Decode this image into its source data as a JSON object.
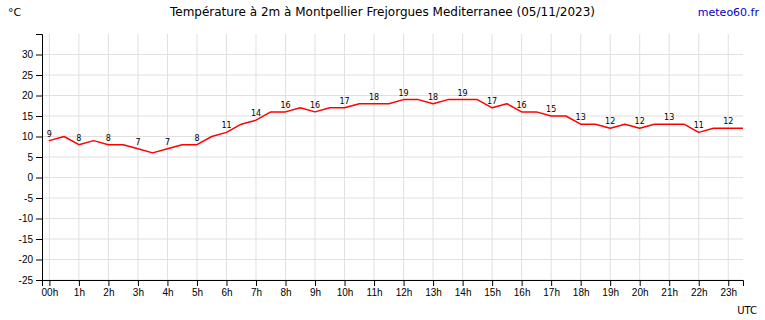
{
  "chart_data": {
    "type": "line",
    "title": "Température à 2m à Montpellier Frejorgues Mediterranee (05/11/2023)",
    "ylabel": "°C",
    "xlabel": "UTC",
    "annotations": [
      {
        "text": "meteo60.fr",
        "color": "#0000cc"
      }
    ],
    "x": [
      0,
      1,
      2,
      3,
      4,
      5,
      6,
      7,
      8,
      9,
      10,
      11,
      12,
      13,
      14,
      15,
      16,
      17,
      18,
      19,
      20,
      21,
      22,
      23,
      24,
      25,
      26,
      27,
      28,
      29,
      30,
      31,
      32,
      33,
      34,
      35,
      36,
      37,
      38,
      39,
      40,
      41,
      42,
      43,
      44,
      45,
      46,
      47
    ],
    "values": [
      9,
      10,
      8,
      9,
      8,
      8,
      7,
      6,
      7,
      8,
      8,
      10,
      11,
      13,
      14,
      16,
      16,
      17,
      16,
      17,
      17,
      18,
      18,
      18,
      19,
      19,
      18,
      19,
      19,
      19,
      17,
      18,
      16,
      16,
      15,
      15,
      13,
      13,
      12,
      13,
      12,
      13,
      13,
      13,
      11,
      12,
      12,
      12
    ],
    "value_labels": [
      "9",
      null,
      "8",
      null,
      "8",
      null,
      "7",
      null,
      "7",
      null,
      "8",
      null,
      "11",
      null,
      "14",
      null,
      "16",
      null,
      "16",
      null,
      "17",
      null,
      "18",
      null,
      "19",
      null,
      "18",
      null,
      "19",
      null,
      "17",
      null,
      "16",
      null,
      "15",
      null,
      "13",
      null,
      "12",
      null,
      "12",
      null,
      "13",
      null,
      "11",
      null,
      "12",
      null
    ],
    "data_labels": true,
    "color": "#ff0000",
    "xlim": [
      -0.5,
      47
    ],
    "xticks": [
      {
        "value": 0,
        "label": "00h"
      },
      {
        "value": 2,
        "label": "1h"
      },
      {
        "value": 4,
        "label": "2h"
      },
      {
        "value": 6,
        "label": "3h"
      },
      {
        "value": 8,
        "label": "4h"
      },
      {
        "value": 10,
        "label": "5h"
      },
      {
        "value": 12,
        "label": "6h"
      },
      {
        "value": 14,
        "label": "7h"
      },
      {
        "value": 16,
        "label": "8h"
      },
      {
        "value": 18,
        "label": "9h"
      },
      {
        "value": 20,
        "label": "10h"
      },
      {
        "value": 22,
        "label": "11h"
      },
      {
        "value": 24,
        "label": "12h"
      },
      {
        "value": 26,
        "label": "13h"
      },
      {
        "value": 28,
        "label": "14h"
      },
      {
        "value": 30,
        "label": "15h"
      },
      {
        "value": 32,
        "label": "16h"
      },
      {
        "value": 34,
        "label": "17h"
      },
      {
        "value": 36,
        "label": "18h"
      },
      {
        "value": 38,
        "label": "19h"
      },
      {
        "value": 40,
        "label": "20h"
      },
      {
        "value": 42,
        "label": "21h"
      },
      {
        "value": 44,
        "label": "22h"
      },
      {
        "value": 46,
        "label": "23h"
      }
    ],
    "ylim": [
      -25,
      35
    ],
    "yticks": [
      -25,
      -20,
      -15,
      -10,
      -5,
      0,
      5,
      10,
      15,
      20,
      25,
      30
    ],
    "grid": true
  }
}
